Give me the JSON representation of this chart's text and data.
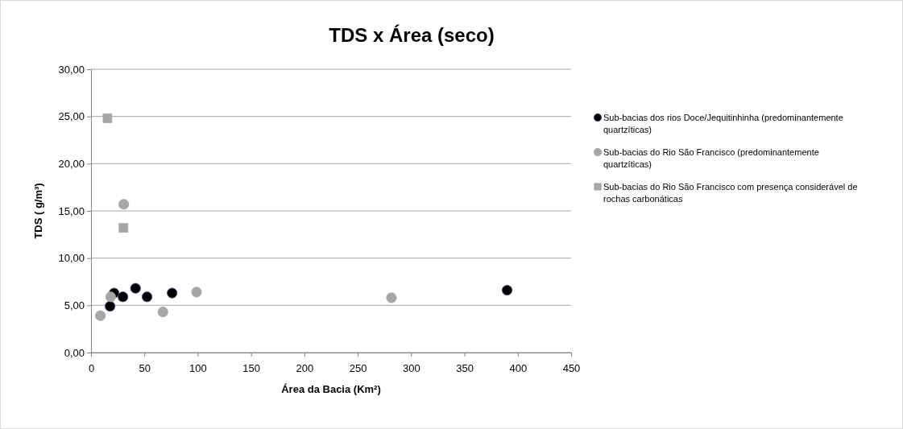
{
  "chart_data": {
    "type": "scatter",
    "title": "TDS x Área (seco)",
    "xlabel": "Área da Bacia (Km²)",
    "ylabel": "TDS ( g/m³)",
    "xlim": [
      0,
      450
    ],
    "xticks": [
      0,
      50,
      100,
      150,
      200,
      250,
      300,
      350,
      400,
      450
    ],
    "ylim": [
      0,
      30
    ],
    "yticks": [
      {
        "value": 0,
        "label": "0,00"
      },
      {
        "value": 5,
        "label": "5,00"
      },
      {
        "value": 10,
        "label": "10,00"
      },
      {
        "value": 15,
        "label": "15,00"
      },
      {
        "value": 20,
        "label": "20,00"
      },
      {
        "value": 25,
        "label": "25,00"
      },
      {
        "value": 30,
        "label": "30,00"
      }
    ],
    "grid": "y",
    "legend": "right",
    "series": [
      {
        "name": "Sub-bacias dos rios Doce/Jequitinhinha (predominantemente quartzíticas)",
        "color": "#000000",
        "marker": "circle",
        "x": [
          17.8,
          21.6,
          29.9,
          41.7,
          52.5,
          76,
          390
        ],
        "values": [
          4.9,
          6.3,
          5.9,
          6.8,
          5.9,
          6.3,
          6.6
        ]
      },
      {
        "name": "Sub-bacias do Rio São Francisco (predominantemente quartzíticas)",
        "color": "#a6a6a6",
        "marker": "circle",
        "x": [
          8.8,
          18.4,
          30.7,
          67.4,
          98.9,
          281.6
        ],
        "values": [
          3.9,
          5.9,
          15.7,
          4.3,
          6.4,
          5.8
        ]
      },
      {
        "name": "Sub-bacias do Rio São Francisco com presença considerável de rochas carbonáticas",
        "color": "#a6a6a6",
        "marker": "square",
        "x": [
          15.4,
          30.4
        ],
        "values": [
          24.8,
          13.2
        ]
      }
    ]
  }
}
